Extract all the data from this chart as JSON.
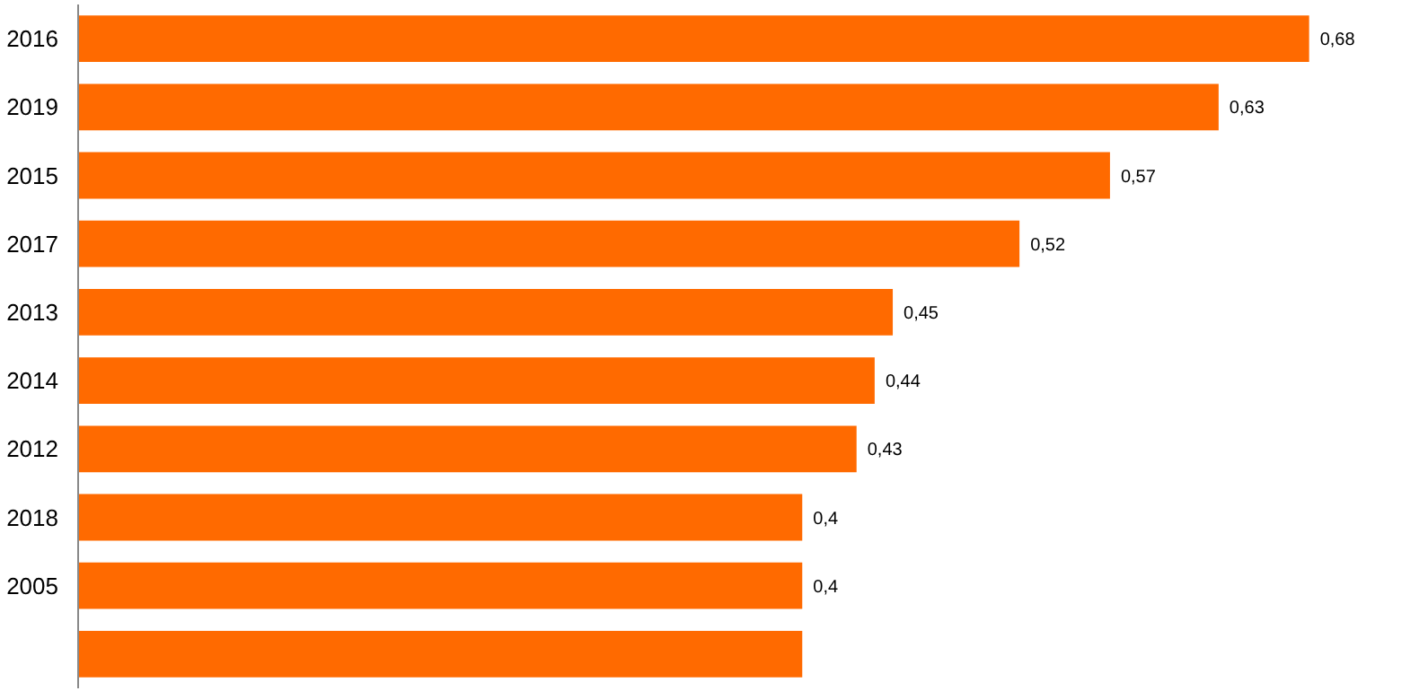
{
  "chart_data": {
    "type": "bar",
    "orientation": "horizontal",
    "categories": [
      "2016",
      "2019",
      "2015",
      "2017",
      "2013",
      "2014",
      "2012",
      "2018",
      "2005",
      null
    ],
    "values": [
      0.68,
      0.63,
      0.57,
      0.52,
      0.45,
      0.44,
      0.43,
      0.4,
      0.4,
      0.4
    ],
    "value_labels": [
      "0,68",
      "0,63",
      "0,57",
      "0,52",
      "0,45",
      "0,44",
      "0,43",
      "0,4",
      "0,4",
      null
    ],
    "color": "#ff6a00",
    "tick_labels": "y",
    "grid": false
  }
}
